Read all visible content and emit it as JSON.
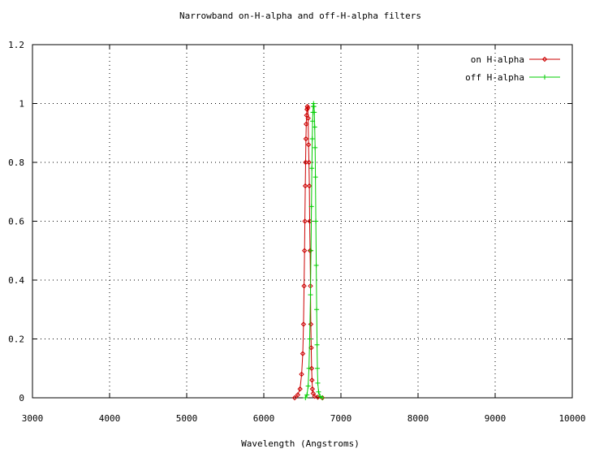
{
  "chart_data": {
    "type": "line",
    "title": "Narrowband on-H-alpha and off-H-alpha filters",
    "xlabel": "Wavelength (Angstroms)",
    "ylabel": "",
    "xlim": [
      3000,
      10000
    ],
    "ylim": [
      0,
      1.2
    ],
    "xticks": [
      "3000",
      "4000",
      "5000",
      "6000",
      "7000",
      "8000",
      "9000",
      "10000"
    ],
    "yticks": [
      "0",
      "0.2",
      "0.4",
      "0.6",
      "0.8",
      "1",
      "1.2"
    ],
    "grid": true,
    "legend_position": "top-right",
    "series": [
      {
        "name": "on H-alpha",
        "color": "#cc0000",
        "marker": "diamond",
        "x": [
          6400,
          6440,
          6470,
          6490,
          6505,
          6515,
          6522,
          6528,
          6533,
          6538,
          6542,
          6546,
          6550,
          6555,
          6560,
          6565,
          6570,
          6575,
          6580,
          6585,
          6590,
          6595,
          6600,
          6605,
          6610,
          6615,
          6620,
          6625,
          6630,
          6640,
          6660,
          6700,
          6760
        ],
        "y": [
          0.0,
          0.01,
          0.03,
          0.08,
          0.15,
          0.25,
          0.38,
          0.5,
          0.6,
          0.72,
          0.8,
          0.88,
          0.93,
          0.96,
          0.98,
          0.99,
          0.985,
          0.95,
          0.86,
          0.8,
          0.72,
          0.6,
          0.5,
          0.38,
          0.25,
          0.17,
          0.1,
          0.06,
          0.03,
          0.015,
          0.005,
          0.002,
          0.0
        ]
      },
      {
        "name": "off H-alpha",
        "color": "#00cc00",
        "marker": "plus",
        "x": [
          6540,
          6560,
          6575,
          6585,
          6595,
          6605,
          6612,
          6618,
          6623,
          6628,
          6633,
          6637,
          6641,
          6645,
          6650,
          6655,
          6660,
          6665,
          6670,
          6675,
          6680,
          6685,
          6690,
          6695,
          6700,
          6710,
          6730,
          6760
        ],
        "y": [
          0.0,
          0.01,
          0.04,
          0.1,
          0.2,
          0.35,
          0.5,
          0.65,
          0.78,
          0.88,
          0.94,
          0.97,
          0.99,
          1.0,
          0.99,
          0.97,
          0.92,
          0.85,
          0.75,
          0.6,
          0.45,
          0.3,
          0.18,
          0.1,
          0.05,
          0.02,
          0.005,
          0.0
        ]
      }
    ]
  }
}
